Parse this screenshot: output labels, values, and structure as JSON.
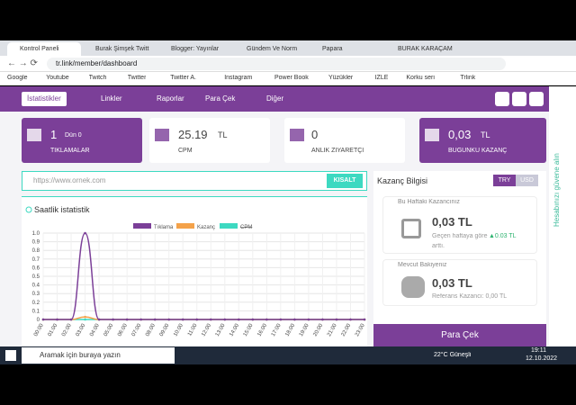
{
  "browser": {
    "tabs": [
      "Kontrol Paneli",
      "Burak Şimşek Twitt",
      "Blogger: Yayınlar",
      "Gündem Ve Norm",
      "Papara",
      "BURAK KARAÇAM"
    ],
    "address": "tr.link/member/dashboard",
    "bookmarks": [
      "Google",
      "Youtube",
      "Twitch",
      "Twitter",
      "Twitter A.",
      "Instagram",
      "Power Book",
      "Yüzükler",
      "İZLE",
      "Korku seri",
      "Trlink"
    ]
  },
  "nav": [
    "İstatistikler",
    "Linkler",
    "Raporlar",
    "Para Çek",
    "Diğer"
  ],
  "cards": [
    {
      "value": "1",
      "sub": "Dün 0",
      "label": "TIKLAMALAR"
    },
    {
      "value": "25.19",
      "unit": "TL",
      "label": "CPM"
    },
    {
      "value": "0",
      "label": "ANLIK ZİYARETÇİ"
    },
    {
      "value": "0,03",
      "unit": "TL",
      "label": "BUGÜNKÜ KAZANÇ"
    }
  ],
  "shortener": {
    "placeholder": "https://www.ornek.com",
    "button": "KISALT"
  },
  "chart": {
    "type": "line",
    "title": "Saatlik istatistik",
    "categories": [
      "00:00",
      "01:00",
      "02:00",
      "03:00",
      "04:00",
      "05:00",
      "06:00",
      "07:00",
      "08:00",
      "09:00",
      "10:00",
      "11:00",
      "12:00",
      "13:00",
      "14:00",
      "15:00",
      "16:00",
      "17:00",
      "18:00",
      "19:00",
      "20:00",
      "21:00",
      "22:00",
      "23:00"
    ],
    "series": [
      {
        "name": "Tıklama",
        "color": "#7b3f98",
        "values": [
          0,
          0,
          0,
          1,
          0,
          0,
          0,
          0,
          0,
          0,
          0,
          0,
          0,
          0,
          0,
          0,
          0,
          0,
          0,
          0,
          0,
          0,
          0,
          0
        ]
      },
      {
        "name": "Kazanç",
        "color": "#f4a24a",
        "values": [
          0,
          0,
          0,
          0.03,
          0,
          0,
          0,
          0,
          0,
          0,
          0,
          0,
          0,
          0,
          0,
          0,
          0,
          0,
          0,
          0,
          0,
          0,
          0,
          0
        ]
      },
      {
        "name": "CPM",
        "color": "#3dd9c1",
        "values": [
          0,
          0,
          0,
          0,
          0,
          0,
          0,
          0,
          0,
          0,
          0,
          0,
          0,
          0,
          0,
          0,
          0,
          0,
          0,
          0,
          0,
          0,
          0,
          0
        ]
      }
    ],
    "ylim": [
      0,
      1
    ],
    "yticks": [
      0,
      0.1,
      0.2,
      0.3,
      0.4,
      0.5,
      0.6,
      0.7,
      0.8,
      0.9,
      {
        "value": 1,
        "label": "1.0"
      }
    ],
    "grid": true
  },
  "earnings": {
    "title": "Kazanç Bilgisi",
    "currencies": [
      "TRY",
      "USD"
    ],
    "week": {
      "title": "Bu Haftaki Kazancınız",
      "amount": "0,03 TL",
      "note": "Geçen haftaya göre",
      "change": "▲0.03 TL",
      "note2": "arttı."
    },
    "balance": {
      "title": "Mevcut Bakiyeniz",
      "amount": "0,03 TL",
      "note": "Referans Kazancı: 0,00 TL"
    },
    "button": "Para Çek"
  },
  "side_tab": "Hesabınızı güvene alın",
  "taskbar": {
    "search": "Aramak için buraya yazın",
    "weather": "22°C  Güneşli",
    "time": "19:11",
    "date": "12.10.2022"
  }
}
